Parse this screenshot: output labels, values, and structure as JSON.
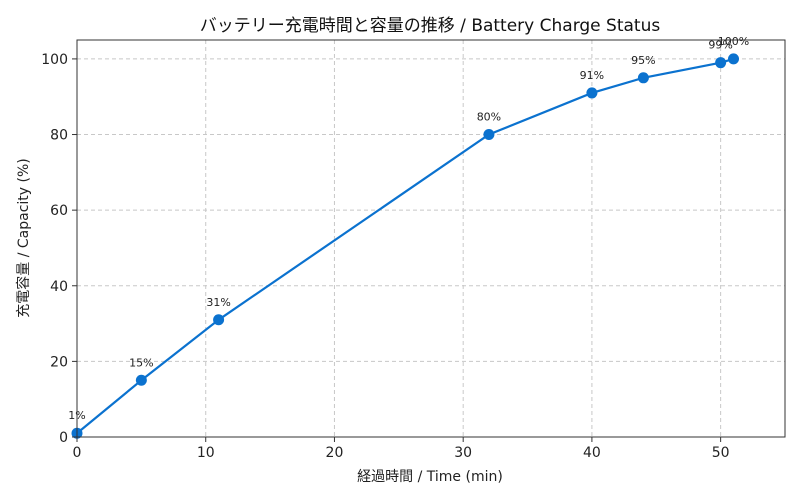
{
  "chart_data": {
    "type": "line",
    "title": "バッテリー充電時間と容量の推移 / Battery Charge Status",
    "xlabel": "経過時間 / Time (min)",
    "ylabel": "充電容量 / Capacity (%)",
    "xlim": [
      0,
      55
    ],
    "ylim": [
      0,
      105
    ],
    "xticks": [
      0,
      10,
      20,
      30,
      40,
      50
    ],
    "yticks": [
      0,
      20,
      40,
      60,
      80,
      100
    ],
    "grid": true,
    "color": "#0b72cf",
    "series": [
      {
        "x": [
          0,
          5,
          11,
          32,
          40,
          44,
          50,
          51
        ],
        "values": [
          1,
          15,
          31,
          80,
          91,
          95,
          99,
          100
        ],
        "labels": [
          "1%",
          "15%",
          "31%",
          "80%",
          "91%",
          "95%",
          "99%",
          "100%"
        ]
      }
    ]
  }
}
